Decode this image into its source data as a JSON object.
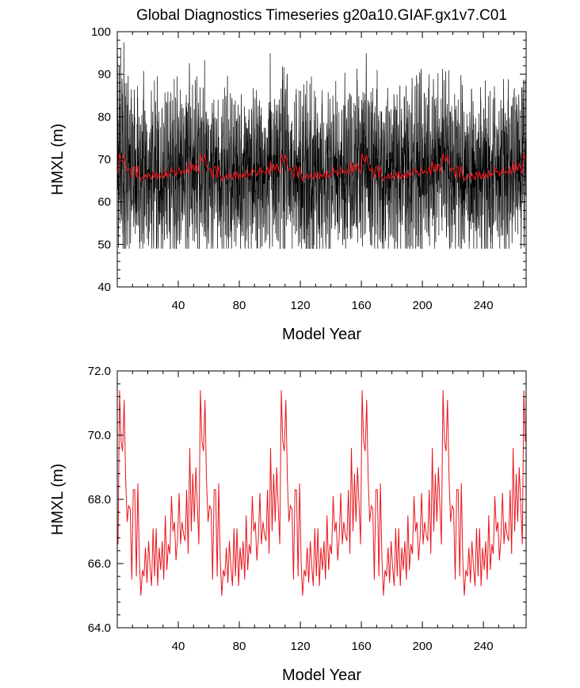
{
  "page": {
    "title": "Global Diagnostics Timeseries g20a10.GIAF.gx1v7.C01"
  },
  "colors": {
    "monthly": "#000000",
    "annual": "#e8141b",
    "frame": "#000000",
    "background": "#ffffff"
  },
  "chart_data": [
    {
      "type": "line",
      "title": "Global Diagnostics Timeseries g20a10.GIAF.gx1v7.C01",
      "xlabel": "Model Year",
      "ylabel": "HMXL (m)",
      "xlim": [
        0,
        268
      ],
      "ylim": [
        40,
        100
      ],
      "xticks": [
        40,
        80,
        120,
        160,
        200,
        240
      ],
      "xtick_labels": [
        "40",
        "80",
        "120",
        "160",
        "200",
        "240"
      ],
      "yticks": [
        40,
        50,
        60,
        70,
        80,
        90,
        100
      ],
      "ytick_labels": [
        "40",
        "50",
        "60",
        "70",
        "80",
        "90",
        "100"
      ],
      "grid": false,
      "series": [
        {
          "role": "monthly",
          "color": "#000000",
          "forcing_cycle_years": 53,
          "summary": {
            "typical_min": 55,
            "typical_max": 85,
            "overall_min": 49,
            "overall_max": 97.5
          }
        },
        {
          "role": "annual_mean",
          "color": "#e8141b",
          "forcing_cycle_years": 53,
          "summary": {
            "min": 64.8,
            "max": 71.4
          }
        }
      ]
    },
    {
      "type": "line",
      "title": "",
      "xlabel": "Model Year",
      "ylabel": "HMXL (m)",
      "xlim": [
        0,
        268
      ],
      "ylim": [
        64,
        72
      ],
      "xticks": [
        40,
        80,
        120,
        160,
        200,
        240
      ],
      "xtick_labels": [
        "40",
        "80",
        "120",
        "160",
        "200",
        "240"
      ],
      "yticks": [
        64,
        66,
        68,
        70,
        72
      ],
      "ytick_labels": [
        "64.0",
        "66.0",
        "68.0",
        "70.0",
        "72.0"
      ],
      "grid": false,
      "series": [
        {
          "role": "annual_mean",
          "color": "#e8141b",
          "x": [
            1,
            2,
            3,
            4,
            5,
            6,
            7,
            8,
            9,
            10,
            11,
            12,
            13,
            14,
            15,
            16,
            17,
            18,
            19,
            20,
            21,
            22,
            23,
            24,
            25,
            26,
            27,
            28,
            29,
            30,
            31,
            32,
            33,
            34,
            35,
            36,
            37,
            38,
            39,
            40,
            41,
            42,
            43,
            44,
            45,
            46,
            47,
            48,
            49,
            50,
            51,
            52,
            53
          ],
          "values": [
            66.6,
            71.4,
            69.8,
            69.5,
            71.1,
            68.6,
            67.3,
            67.8,
            67.7,
            65.5,
            68.3,
            68.3,
            65.6,
            68.5,
            66.1,
            65.0,
            65.8,
            65.6,
            66.5,
            65.4,
            66.7,
            65.9,
            65.3,
            67.1,
            65.6,
            67.1,
            65.3,
            66.5,
            65.8,
            66.7,
            65.5,
            67.5,
            65.8,
            66.6,
            66.3,
            68.1,
            67.0,
            67.3,
            66.1,
            66.8,
            68.2,
            66.6,
            67.3,
            66.9,
            66.7,
            68.3,
            66.3,
            69.6,
            67.0,
            68.8,
            67.3,
            69.0,
            67.8
          ]
        }
      ]
    }
  ]
}
